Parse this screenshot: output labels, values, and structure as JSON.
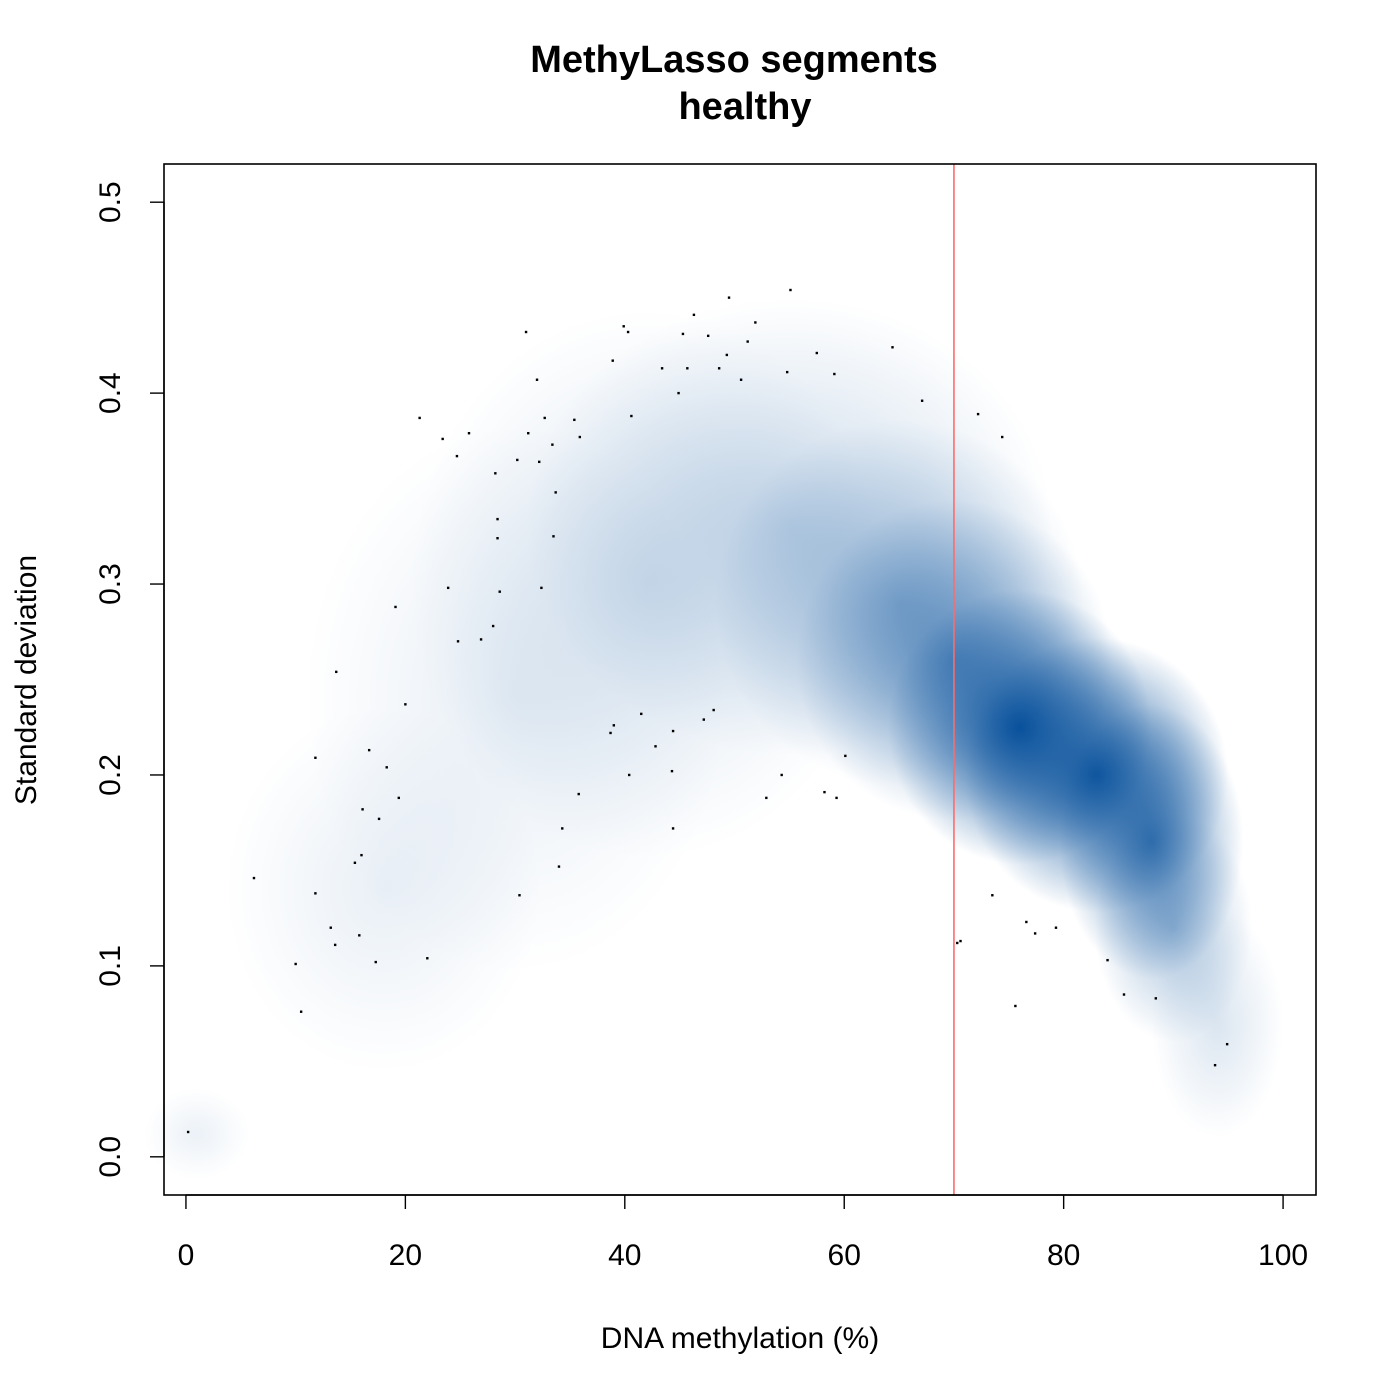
{
  "chart_data": {
    "type": "scatter",
    "title": "MethyLasso segments",
    "subtitle": "healthy",
    "xlabel": "DNA methylation (%)",
    "ylabel": "Standard deviation",
    "xlim": [
      -2,
      103
    ],
    "ylim": [
      -0.02,
      0.52
    ],
    "x_ticks": [
      0,
      20,
      40,
      60,
      80,
      100
    ],
    "y_ticks": [
      0.0,
      0.1,
      0.2,
      0.3,
      0.4,
      0.5
    ],
    "x_tick_labels": [
      "0",
      "20",
      "40",
      "60",
      "80",
      "100"
    ],
    "y_tick_labels": [
      "0.0",
      "0.1",
      "0.2",
      "0.3",
      "0.4",
      "0.5"
    ],
    "grid": false,
    "density_color": "#08519c",
    "point_color": "#000000",
    "vline": {
      "x": 70,
      "color": "#ff6b6b"
    },
    "density_clusters": [
      {
        "x": 76,
        "y": 0.225,
        "sx": 5,
        "sy": 0.03,
        "w": 1.0
      },
      {
        "x": 83,
        "y": 0.2,
        "sx": 5,
        "sy": 0.03,
        "w": 0.95
      },
      {
        "x": 88,
        "y": 0.165,
        "sx": 3.5,
        "sy": 0.03,
        "w": 0.75
      },
      {
        "x": 70,
        "y": 0.26,
        "sx": 6,
        "sy": 0.035,
        "w": 0.55
      },
      {
        "x": 65,
        "y": 0.29,
        "sx": 7,
        "sy": 0.04,
        "w": 0.35
      },
      {
        "x": 90,
        "y": 0.12,
        "sx": 3,
        "sy": 0.025,
        "w": 0.35
      },
      {
        "x": 55,
        "y": 0.33,
        "sx": 10,
        "sy": 0.05,
        "w": 0.22
      },
      {
        "x": 42,
        "y": 0.3,
        "sx": 9,
        "sy": 0.06,
        "w": 0.15
      },
      {
        "x": 30,
        "y": 0.24,
        "sx": 8,
        "sy": 0.06,
        "w": 0.1
      },
      {
        "x": 18,
        "y": 0.14,
        "sx": 6,
        "sy": 0.04,
        "w": 0.09
      },
      {
        "x": 94,
        "y": 0.07,
        "sx": 2.5,
        "sy": 0.025,
        "w": 0.15
      },
      {
        "x": 1,
        "y": 0.012,
        "sx": 2,
        "sy": 0.01,
        "w": 0.08
      }
    ],
    "points": [
      [
        0.2,
        0.013
      ],
      [
        6.2,
        0.146
      ],
      [
        10,
        0.101
      ],
      [
        10.5,
        0.076
      ],
      [
        11.8,
        0.138
      ],
      [
        11.8,
        0.209
      ],
      [
        13.2,
        0.12
      ],
      [
        13.6,
        0.111
      ],
      [
        13.7,
        0.254
      ],
      [
        15.4,
        0.154
      ],
      [
        15.8,
        0.116
      ],
      [
        16,
        0.158
      ],
      [
        16.1,
        0.182
      ],
      [
        16.7,
        0.213
      ],
      [
        17.3,
        0.102
      ],
      [
        17.6,
        0.177
      ],
      [
        18.3,
        0.204
      ],
      [
        19.1,
        0.288
      ],
      [
        19.4,
        0.188
      ],
      [
        20,
        0.237
      ],
      [
        21.3,
        0.387
      ],
      [
        22,
        0.104
      ],
      [
        23.4,
        0.376
      ],
      [
        23.9,
        0.298
      ],
      [
        24.7,
        0.367
      ],
      [
        24.8,
        0.27
      ],
      [
        25.8,
        0.379
      ],
      [
        26.9,
        0.271
      ],
      [
        28,
        0.278
      ],
      [
        28.2,
        0.358
      ],
      [
        28.4,
        0.334
      ],
      [
        28.4,
        0.324
      ],
      [
        28.6,
        0.296
      ],
      [
        30.2,
        0.365
      ],
      [
        30.4,
        0.137
      ],
      [
        31,
        0.432
      ],
      [
        31.2,
        0.379
      ],
      [
        32,
        0.407
      ],
      [
        32.2,
        0.364
      ],
      [
        32.4,
        0.298
      ],
      [
        32.7,
        0.387
      ],
      [
        33.4,
        0.373
      ],
      [
        33.5,
        0.325
      ],
      [
        33.7,
        0.348
      ],
      [
        34,
        0.152
      ],
      [
        34.3,
        0.172
      ],
      [
        35.4,
        0.386
      ],
      [
        35.8,
        0.19
      ],
      [
        35.9,
        0.377
      ],
      [
        38.7,
        0.222
      ],
      [
        38.9,
        0.417
      ],
      [
        39,
        0.226
      ],
      [
        39.9,
        0.435
      ],
      [
        40.3,
        0.432
      ],
      [
        40.4,
        0.2
      ],
      [
        40.6,
        0.388
      ],
      [
        41.5,
        0.232
      ],
      [
        42.8,
        0.215
      ],
      [
        43.4,
        0.413
      ],
      [
        44.3,
        0.202
      ],
      [
        44.4,
        0.223
      ],
      [
        44.4,
        0.172
      ],
      [
        44.9,
        0.4
      ],
      [
        45.3,
        0.431
      ],
      [
        45.7,
        0.413
      ],
      [
        46.3,
        0.441
      ],
      [
        47.2,
        0.229
      ],
      [
        47.6,
        0.43
      ],
      [
        48.1,
        0.234
      ],
      [
        48.6,
        0.413
      ],
      [
        49.3,
        0.42
      ],
      [
        49.5,
        0.45
      ],
      [
        50.6,
        0.407
      ],
      [
        51.2,
        0.427
      ],
      [
        51.9,
        0.437
      ],
      [
        52.9,
        0.188
      ],
      [
        54.3,
        0.2
      ],
      [
        54.8,
        0.411
      ],
      [
        55.1,
        0.454
      ],
      [
        57.5,
        0.421
      ],
      [
        58.2,
        0.191
      ],
      [
        59.1,
        0.41
      ],
      [
        59.3,
        0.188
      ],
      [
        60.1,
        0.21
      ],
      [
        64.4,
        0.424
      ],
      [
        67.1,
        0.396
      ],
      [
        70.3,
        0.112
      ],
      [
        70.6,
        0.113
      ],
      [
        72.2,
        0.389
      ],
      [
        73.5,
        0.137
      ],
      [
        74.4,
        0.377
      ],
      [
        75.6,
        0.079
      ],
      [
        76.6,
        0.123
      ],
      [
        77.4,
        0.117
      ],
      [
        79.3,
        0.12
      ],
      [
        84,
        0.103
      ],
      [
        85.5,
        0.085
      ],
      [
        88.4,
        0.083
      ],
      [
        93.8,
        0.048
      ],
      [
        94.9,
        0.059
      ]
    ]
  }
}
